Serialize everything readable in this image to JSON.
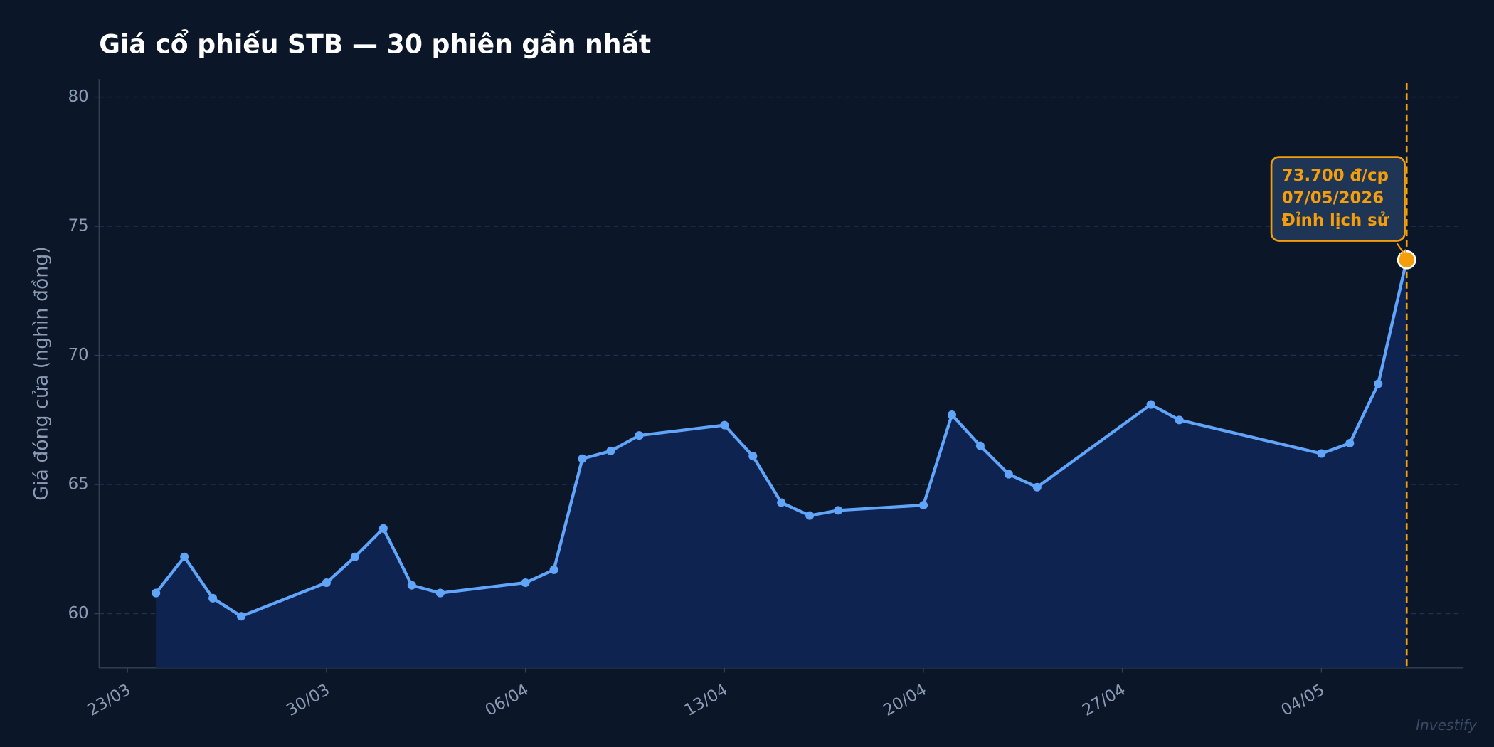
{
  "chart_data": {
    "type": "line",
    "title": "Giá cổ phiếu STB — 30 phiên gần nhất",
    "y_label": "Giá đóng cửa (nghìn đồng)",
    "x": [
      "24/03",
      "25/03",
      "26/03",
      "27/03",
      "30/03",
      "31/03",
      "01/04",
      "02/04",
      "03/04",
      "06/04",
      "07/04",
      "08/04",
      "09/04",
      "10/04",
      "13/04",
      "14/04",
      "15/04",
      "16/04",
      "17/04",
      "20/04",
      "21/04",
      "22/04",
      "23/04",
      "24/04",
      "28/04",
      "29/04",
      "04/05",
      "05/05",
      "06/05",
      "07/05"
    ],
    "series": [
      {
        "name": "STB",
        "color": "#60a5fa",
        "values": [
          60.8,
          62.2,
          60.6,
          59.9,
          61.2,
          62.2,
          63.3,
          61.1,
          60.8,
          61.2,
          61.7,
          66.0,
          66.3,
          66.9,
          67.3,
          66.1,
          64.3,
          63.8,
          64.0,
          64.2,
          67.7,
          66.5,
          65.4,
          64.9,
          68.1,
          67.5,
          66.2,
          66.6,
          68.9,
          73.7
        ]
      }
    ],
    "xlim": [
      "22/03",
      "09/05"
    ],
    "xticks": [
      "23/03",
      "30/03",
      "06/04",
      "13/04",
      "20/04",
      "27/04",
      "04/05"
    ],
    "ylim": [
      57.9,
      80.7
    ],
    "yticks": [
      60,
      65,
      70,
      75,
      80
    ],
    "grid": true,
    "annotation": [
      "73.700 đ/cp",
      "07/05/2026",
      "Đỉnh lịch sử"
    ],
    "annotation_color": "#f59e0b",
    "watermark": "Investify"
  }
}
